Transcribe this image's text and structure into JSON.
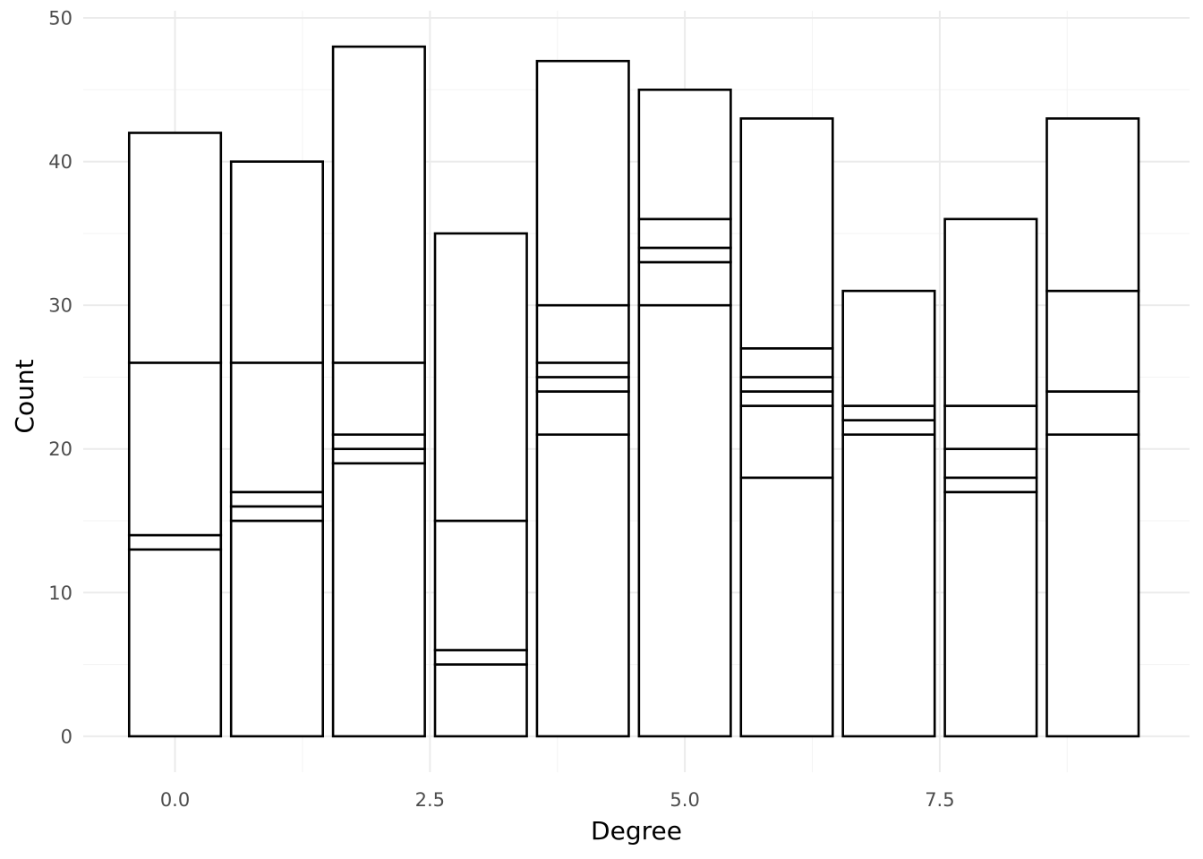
{
  "chart_data": {
    "type": "bar",
    "stacked": true,
    "xlabel": "Degree",
    "ylabel": "Count",
    "x": [
      0,
      1,
      2,
      3,
      4,
      5,
      6,
      7,
      8,
      9
    ],
    "segment_boundaries": [
      [
        13,
        14,
        26,
        42
      ],
      [
        15,
        16,
        17,
        26,
        40
      ],
      [
        19,
        20,
        21,
        26,
        48
      ],
      [
        5,
        6,
        15,
        35
      ],
      [
        21,
        24,
        25,
        26,
        30,
        47
      ],
      [
        30,
        33,
        34,
        36,
        45
      ],
      [
        18,
        23,
        24,
        25,
        27,
        43
      ],
      [
        21,
        22,
        23,
        31
      ],
      [
        17,
        18,
        20,
        23,
        36
      ],
      [
        21,
        24,
        31,
        43
      ]
    ],
    "totals": [
      42,
      40,
      48,
      35,
      47,
      45,
      43,
      31,
      36,
      43
    ],
    "xlim": [
      -0.9,
      9.95
    ],
    "ylim": [
      -2.5,
      50.5
    ],
    "x_ticks": [
      0.0,
      2.5,
      5.0,
      7.5
    ],
    "x_tick_labels": [
      "0.0",
      "2.5",
      "5.0",
      "7.5"
    ],
    "x_minor_ticks": [
      1.25,
      3.75,
      6.25,
      8.75
    ],
    "y_ticks": [
      0,
      10,
      20,
      30,
      40,
      50
    ],
    "y_tick_labels": [
      "0",
      "10",
      "20",
      "30",
      "40",
      "50"
    ],
    "y_minor_ticks": [
      5,
      15,
      25,
      35,
      45
    ],
    "bar_width": 0.9,
    "fill_color": "#ffffff",
    "outline_color": "#000000",
    "grid": true,
    "legend": "none"
  }
}
